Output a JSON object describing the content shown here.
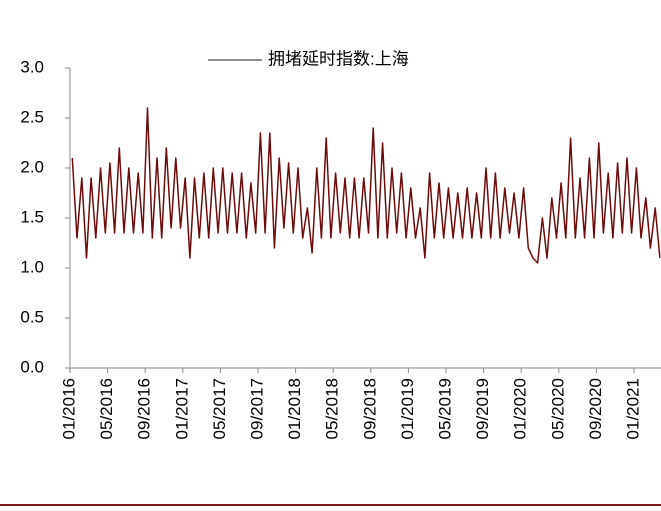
{
  "chart_data": {
    "type": "line",
    "x": [
      "01/2016",
      "01/2016",
      "02/2016",
      "02/2016",
      "03/2016",
      "03/2016",
      "04/2016",
      "04/2016",
      "05/2016",
      "05/2016",
      "06/2016",
      "06/2016",
      "07/2016",
      "07/2016",
      "08/2016",
      "08/2016",
      "09/2016",
      "09/2016",
      "10/2016",
      "10/2016",
      "11/2016",
      "11/2016",
      "12/2016",
      "12/2016",
      "01/2017",
      "01/2017",
      "02/2017",
      "02/2017",
      "03/2017",
      "03/2017",
      "04/2017",
      "04/2017",
      "05/2017",
      "05/2017",
      "06/2017",
      "06/2017",
      "07/2017",
      "07/2017",
      "08/2017",
      "08/2017",
      "09/2017",
      "09/2017",
      "10/2017",
      "10/2017",
      "11/2017",
      "11/2017",
      "12/2017",
      "12/2017",
      "01/2018",
      "01/2018",
      "02/2018",
      "02/2018",
      "03/2018",
      "03/2018",
      "04/2018",
      "04/2018",
      "05/2018",
      "05/2018",
      "06/2018",
      "06/2018",
      "07/2018",
      "07/2018",
      "08/2018",
      "08/2018",
      "09/2018",
      "09/2018",
      "10/2018",
      "10/2018",
      "11/2018",
      "11/2018",
      "12/2018",
      "12/2018",
      "01/2019",
      "01/2019",
      "02/2019",
      "02/2019",
      "03/2019",
      "03/2019",
      "04/2019",
      "04/2019",
      "05/2019",
      "05/2019",
      "06/2019",
      "06/2019",
      "07/2019",
      "07/2019",
      "08/2019",
      "08/2019",
      "09/2019",
      "09/2019",
      "10/2019",
      "10/2019",
      "11/2019",
      "11/2019",
      "12/2019",
      "12/2019",
      "01/2020",
      "01/2020",
      "02/2020",
      "02/2020",
      "03/2020",
      "03/2020",
      "04/2020",
      "04/2020",
      "05/2020",
      "05/2020",
      "06/2020",
      "06/2020",
      "07/2020",
      "07/2020",
      "08/2020",
      "08/2020",
      "09/2020",
      "09/2020",
      "10/2020",
      "10/2020",
      "11/2020",
      "11/2020",
      "12/2020",
      "12/2020",
      "01/2021",
      "01/2021",
      "02/2021",
      "02/2021",
      "03/2021",
      "03/2021"
    ],
    "series": [
      {
        "name": "拥堵延时指数:上海",
        "color": "#6e0b0b",
        "values": [
          2.1,
          1.3,
          1.9,
          1.1,
          1.9,
          1.3,
          2.0,
          1.35,
          2.05,
          1.35,
          2.2,
          1.35,
          2.0,
          1.35,
          1.95,
          1.35,
          2.6,
          1.3,
          2.1,
          1.3,
          2.2,
          1.4,
          2.1,
          1.4,
          1.9,
          1.1,
          1.9,
          1.3,
          1.95,
          1.3,
          2.0,
          1.35,
          2.0,
          1.35,
          1.95,
          1.35,
          1.95,
          1.3,
          1.85,
          1.35,
          2.35,
          1.35,
          2.35,
          1.2,
          2.1,
          1.4,
          2.05,
          1.35,
          2.0,
          1.3,
          1.6,
          1.15,
          2.0,
          1.3,
          2.3,
          1.3,
          1.95,
          1.35,
          1.9,
          1.3,
          1.9,
          1.3,
          1.9,
          1.35,
          2.4,
          1.3,
          2.25,
          1.3,
          2.0,
          1.35,
          1.95,
          1.3,
          1.8,
          1.3,
          1.6,
          1.1,
          1.95,
          1.3,
          1.85,
          1.3,
          1.8,
          1.3,
          1.75,
          1.3,
          1.8,
          1.3,
          1.75,
          1.3,
          2.0,
          1.3,
          1.95,
          1.3,
          1.8,
          1.35,
          1.75,
          1.3,
          1.8,
          1.2,
          1.1,
          1.05,
          1.5,
          1.1,
          1.7,
          1.3,
          1.85,
          1.3,
          2.3,
          1.3,
          1.9,
          1.3,
          2.1,
          1.3,
          2.25,
          1.35,
          1.95,
          1.3,
          2.05,
          1.35,
          2.1,
          1.35,
          2.0,
          1.3,
          1.7,
          1.2,
          1.6,
          1.1
        ]
      }
    ],
    "ylim": [
      0,
      3
    ],
    "yticks": [
      {
        "value": 0,
        "label": "0.0"
      },
      0.5,
      {
        "value": 1,
        "label": "1.0"
      },
      1.5,
      {
        "value": 2,
        "label": "2.0"
      },
      2.5,
      {
        "value": 3,
        "label": "3.0"
      }
    ]
  }
}
